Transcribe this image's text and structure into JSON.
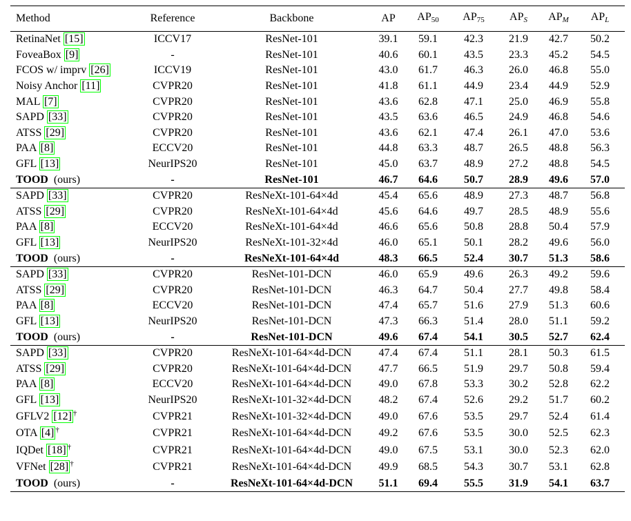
{
  "table": {
    "header": [
      {
        "text": "Method"
      },
      {
        "text": "Reference"
      },
      {
        "text": "Backbone"
      },
      {
        "text": "AP"
      },
      {
        "text": "AP",
        "sub": "50"
      },
      {
        "text": "AP",
        "sub": "75"
      },
      {
        "text": "AP",
        "sub": "S",
        "italic": true
      },
      {
        "text": "AP",
        "sub": "M",
        "italic": true
      },
      {
        "text": "AP",
        "sub": "L",
        "italic": true
      }
    ],
    "groups": [
      {
        "rows": [
          {
            "method": {
              "name": "RetinaNet",
              "cite": "[15]"
            },
            "reference": "ICCV17",
            "backbone": "ResNet-101",
            "values": [
              "39.1",
              "59.1",
              "42.3",
              "21.9",
              "42.7",
              "50.2"
            ]
          },
          {
            "method": {
              "name": "FoveaBox",
              "cite": "[9]"
            },
            "reference": "-",
            "backbone": "ResNet-101",
            "values": [
              "40.6",
              "60.1",
              "43.5",
              "23.3",
              "45.2",
              "54.5"
            ]
          },
          {
            "method": {
              "name": "FCOS w/ imprv",
              "cite": "[26]"
            },
            "reference": "ICCV19",
            "backbone": "ResNet-101",
            "values": [
              "43.0",
              "61.7",
              "46.3",
              "26.0",
              "46.8",
              "55.0"
            ]
          },
          {
            "method": {
              "name": "Noisy Anchor",
              "cite": "[11]"
            },
            "reference": "CVPR20",
            "backbone": "ResNet-101",
            "values": [
              "41.8",
              "61.1",
              "44.9",
              "23.4",
              "44.9",
              "52.9"
            ]
          },
          {
            "method": {
              "name": "MAL",
              "cite": "[7]"
            },
            "reference": "CVPR20",
            "backbone": "ResNet-101",
            "values": [
              "43.6",
              "62.8",
              "47.1",
              "25.0",
              "46.9",
              "55.8"
            ]
          },
          {
            "method": {
              "name": "SAPD",
              "cite": "[33]"
            },
            "reference": "CVPR20",
            "backbone": "ResNet-101",
            "values": [
              "43.5",
              "63.6",
              "46.5",
              "24.9",
              "46.8",
              "54.6"
            ]
          },
          {
            "method": {
              "name": "ATSS",
              "cite": "[29]"
            },
            "reference": "CVPR20",
            "backbone": "ResNet-101",
            "values": [
              "43.6",
              "62.1",
              "47.4",
              "26.1",
              "47.0",
              "53.6"
            ]
          },
          {
            "method": {
              "name": "PAA",
              "cite": "[8]"
            },
            "reference": "ECCV20",
            "backbone": "ResNet-101",
            "values": [
              "44.8",
              "63.3",
              "48.7",
              "26.5",
              "48.8",
              "56.3"
            ]
          },
          {
            "method": {
              "name": "GFL",
              "cite": "[13]"
            },
            "reference": "NeurIPS20",
            "backbone": "ResNet-101",
            "values": [
              "45.0",
              "63.7",
              "48.9",
              "27.2",
              "48.8",
              "54.5"
            ]
          },
          {
            "method": {
              "name": "TOOD",
              "note": "(ours)"
            },
            "reference": "-",
            "backbone": "ResNet-101",
            "values": [
              "46.7",
              "64.6",
              "50.7",
              "28.9",
              "49.6",
              "57.0"
            ],
            "bold": true
          }
        ]
      },
      {
        "rows": [
          {
            "method": {
              "name": "SAPD",
              "cite": "[33]"
            },
            "reference": "CVPR20",
            "backbone": "ResNeXt-101-64×4d",
            "values": [
              "45.4",
              "65.6",
              "48.9",
              "27.3",
              "48.7",
              "56.8"
            ]
          },
          {
            "method": {
              "name": "ATSS",
              "cite": "[29]"
            },
            "reference": "CVPR20",
            "backbone": "ResNeXt-101-64×4d",
            "values": [
              "45.6",
              "64.6",
              "49.7",
              "28.5",
              "48.9",
              "55.6"
            ]
          },
          {
            "method": {
              "name": "PAA",
              "cite": "[8]"
            },
            "reference": "ECCV20",
            "backbone": "ResNeXt-101-64×4d",
            "values": [
              "46.6",
              "65.6",
              "50.8",
              "28.8",
              "50.4",
              "57.9"
            ]
          },
          {
            "method": {
              "name": "GFL",
              "cite": "[13]"
            },
            "reference": "NeurIPS20",
            "backbone": "ResNeXt-101-32×4d",
            "values": [
              "46.0",
              "65.1",
              "50.1",
              "28.2",
              "49.6",
              "56.0"
            ]
          },
          {
            "method": {
              "name": "TOOD",
              "note": "(ours)"
            },
            "reference": "-",
            "backbone": "ResNeXt-101-64×4d",
            "values": [
              "48.3",
              "66.5",
              "52.4",
              "30.7",
              "51.3",
              "58.6"
            ],
            "bold": true
          }
        ]
      },
      {
        "rows": [
          {
            "method": {
              "name": "SAPD",
              "cite": "[33]"
            },
            "reference": "CVPR20",
            "backbone": "ResNet-101-DCN",
            "values": [
              "46.0",
              "65.9",
              "49.6",
              "26.3",
              "49.2",
              "59.6"
            ]
          },
          {
            "method": {
              "name": "ATSS",
              "cite": "[29]"
            },
            "reference": "CVPR20",
            "backbone": "ResNet-101-DCN",
            "values": [
              "46.3",
              "64.7",
              "50.4",
              "27.7",
              "49.8",
              "58.4"
            ]
          },
          {
            "method": {
              "name": "PAA",
              "cite": "[8]"
            },
            "reference": "ECCV20",
            "backbone": "ResNet-101-DCN",
            "values": [
              "47.4",
              "65.7",
              "51.6",
              "27.9",
              "51.3",
              "60.6"
            ]
          },
          {
            "method": {
              "name": "GFL",
              "cite": "[13]"
            },
            "reference": "NeurIPS20",
            "backbone": "ResNet-101-DCN",
            "values": [
              "47.3",
              "66.3",
              "51.4",
              "28.0",
              "51.1",
              "59.2"
            ]
          },
          {
            "method": {
              "name": "TOOD",
              "note": "(ours)"
            },
            "reference": "-",
            "backbone": "ResNet-101-DCN",
            "values": [
              "49.6",
              "67.4",
              "54.1",
              "30.5",
              "52.7",
              "62.4"
            ],
            "bold": true
          }
        ]
      },
      {
        "rows": [
          {
            "method": {
              "name": "SAPD",
              "cite": "[33]"
            },
            "reference": "CVPR20",
            "backbone": "ResNeXt-101-64×4d-DCN",
            "values": [
              "47.4",
              "67.4",
              "51.1",
              "28.1",
              "50.3",
              "61.5"
            ]
          },
          {
            "method": {
              "name": "ATSS",
              "cite": "[29]"
            },
            "reference": "CVPR20",
            "backbone": "ResNeXt-101-64×4d-DCN",
            "values": [
              "47.7",
              "66.5",
              "51.9",
              "29.7",
              "50.8",
              "59.4"
            ]
          },
          {
            "method": {
              "name": "PAA",
              "cite": "[8]"
            },
            "reference": "ECCV20",
            "backbone": "ResNeXt-101-64×4d-DCN",
            "values": [
              "49.0",
              "67.8",
              "53.3",
              "30.2",
              "52.8",
              "62.2"
            ]
          },
          {
            "method": {
              "name": "GFL",
              "cite": "[13]"
            },
            "reference": "NeurIPS20",
            "backbone": "ResNeXt-101-32×4d-DCN",
            "values": [
              "48.2",
              "67.4",
              "52.6",
              "29.2",
              "51.7",
              "60.2"
            ]
          },
          {
            "method": {
              "name": "GFLV2",
              "cite": "[12]",
              "mark": "†"
            },
            "reference": "CVPR21",
            "backbone": "ResNeXt-101-32×4d-DCN",
            "values": [
              "49.0",
              "67.6",
              "53.5",
              "29.7",
              "52.4",
              "61.4"
            ]
          },
          {
            "method": {
              "name": "OTA",
              "cite": "[4]",
              "mark": "†"
            },
            "reference": "CVPR21",
            "backbone": "ResNeXt-101-64×4d-DCN",
            "values": [
              "49.2",
              "67.6",
              "53.5",
              "30.0",
              "52.5",
              "62.3"
            ]
          },
          {
            "method": {
              "name": "IQDet",
              "cite": "[18]",
              "mark": "†"
            },
            "reference": "CVPR21",
            "backbone": "ResNeXt-101-64×4d-DCN",
            "values": [
              "49.0",
              "67.5",
              "53.1",
              "30.0",
              "52.3",
              "62.0"
            ]
          },
          {
            "method": {
              "name": "VFNet",
              "cite": "[28]",
              "mark": "†"
            },
            "reference": "CVPR21",
            "backbone": "ResNeXt-101-64×4d-DCN",
            "values": [
              "49.9",
              "68.5",
              "54.3",
              "30.7",
              "53.1",
              "62.8"
            ]
          },
          {
            "method": {
              "name": "TOOD",
              "note": "(ours)"
            },
            "reference": "-",
            "backbone": "ResNeXt-101-64×4d-DCN",
            "values": [
              "51.1",
              "69.4",
              "55.5",
              "31.9",
              "54.1",
              "63.7"
            ],
            "bold": true
          }
        ]
      }
    ]
  }
}
